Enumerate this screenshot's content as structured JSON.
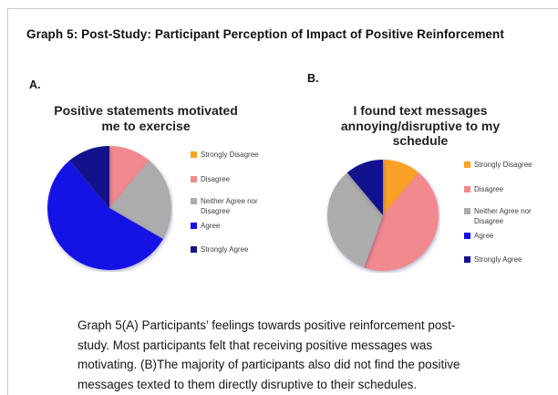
{
  "page": {
    "title": "Graph 5: Post-Study: Participant Perception of Impact of Positive Reinforcement",
    "panel_a_label": "A.",
    "panel_b_label": "B.",
    "caption_lines": [
      "Graph 5(A) Participants’ feelings towards positive reinforcement post-",
      "study. Most participants felt that receiving positive messages was",
      "motivating. (B)The majority of participants also did not find the positive",
      "messages texted to them directly disruptive to their schedules."
    ]
  },
  "colors": {
    "slices": [
      "#FBA226",
      "#F2898E",
      "#ACACAC",
      "#1512E6",
      "#12128C"
    ],
    "border": "#c9c9c9",
    "legend_text": "#3f3f3f"
  },
  "chart_data": [
    {
      "type": "pie",
      "panel": "A",
      "title": "Positive statements motivated me to exercise",
      "categories": [
        "Strongly Disagree",
        "Disagree",
        "Neither Agree nor Disagree",
        "Agree",
        "Strongly Agree"
      ],
      "values": [
        0,
        1,
        2,
        5,
        1
      ],
      "percents": [
        0,
        11.1,
        22.2,
        55.6,
        11.1
      ],
      "start_angle_deg": 0,
      "direction": "clockwise",
      "legend_position": "right"
    },
    {
      "type": "pie",
      "panel": "B",
      "title": "I found text messages annoying/disruptive to my schedule",
      "categories": [
        "Strongly Disagree",
        "Disagree",
        "Neither Agree nor Disagree",
        "Agree",
        "Strongly Agree"
      ],
      "values": [
        1,
        4,
        3,
        0,
        1
      ],
      "percents": [
        11.1,
        44.4,
        33.3,
        0,
        11.1
      ],
      "start_angle_deg": 0,
      "direction": "clockwise",
      "legend_position": "right"
    }
  ]
}
